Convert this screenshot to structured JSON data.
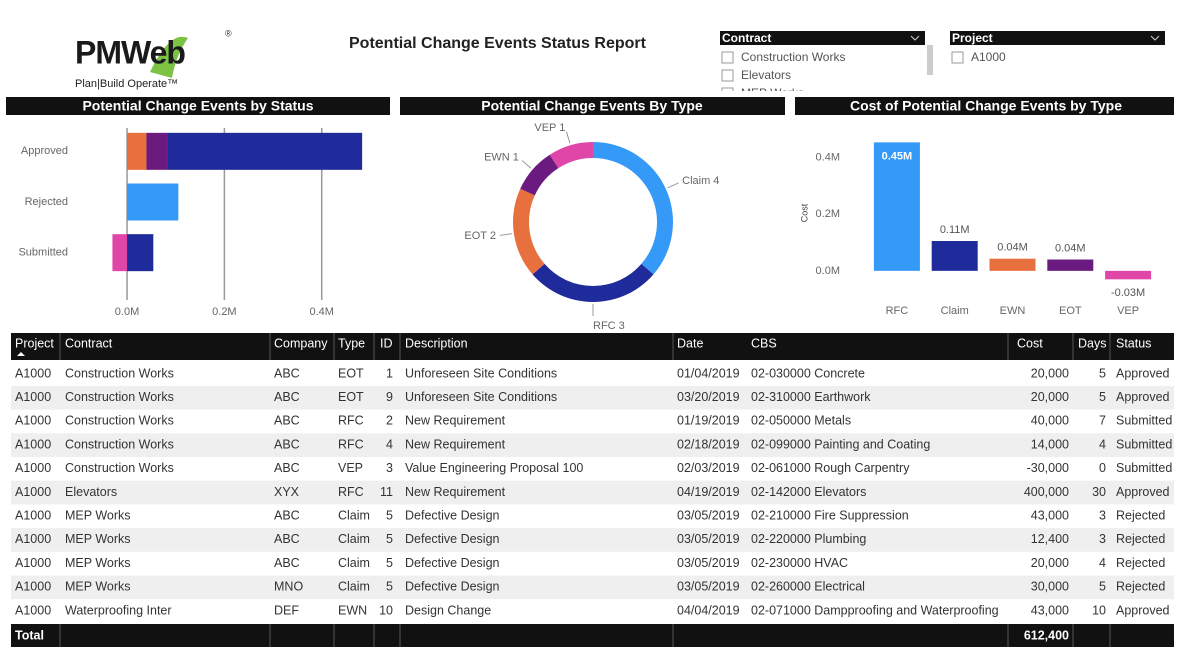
{
  "logo": {
    "brand": "PMWeb",
    "tagline": "Plan|Build Operate™"
  },
  "title": "Potential Change Events Status Report",
  "slicers": [
    {
      "title": "Contract",
      "items": [
        "Construction Works",
        "Elevators",
        "MEP Works"
      ]
    },
    {
      "title": "Project",
      "items": [
        "A1000"
      ]
    }
  ],
  "chart_data": [
    {
      "type": "bar",
      "orientation": "horizontal",
      "stacked": true,
      "title": "Potential Change Events by Status",
      "categories": [
        "Approved",
        "Rejected",
        "Submitted"
      ],
      "series": [
        {
          "color": "#E8703F",
          "values": [
            40000,
            null,
            null
          ]
        },
        {
          "color": "#6B1A7F",
          "values": [
            43000,
            null,
            null
          ]
        },
        {
          "color": "#1F2A9B",
          "values": [
            400000,
            null,
            54000
          ]
        },
        {
          "color": "#3599F7",
          "values": [
            null,
            105400,
            null
          ]
        },
        {
          "color": "#E046A8",
          "values": [
            null,
            null,
            -30000
          ]
        }
      ],
      "xlim": [
        -35000,
        530000
      ],
      "xticks": [
        {
          "value": 0,
          "label": "0.0M"
        },
        {
          "value": 200000,
          "label": "0.2M"
        },
        {
          "value": 400000,
          "label": "0.4M"
        }
      ],
      "grid": true
    },
    {
      "type": "pie",
      "donut": true,
      "title": "Potential Change Events By Type",
      "categories": [
        "Claim",
        "RFC",
        "EOT",
        "EWN",
        "VEP"
      ],
      "values": [
        4,
        3,
        2,
        1,
        1
      ],
      "value_labels": [
        "Claim 4",
        "RFC 3",
        "EOT 2",
        "EWN 1",
        "VEP 1"
      ],
      "colors": [
        "#3599F7",
        "#1F2A9B",
        "#E8703F",
        "#6B1A7F",
        "#E046A8"
      ]
    },
    {
      "type": "bar",
      "title": "Cost of Potential Change Events by Type",
      "categories": [
        "RFC",
        "Claim",
        "EWN",
        "EOT",
        "VEP"
      ],
      "values": [
        454000,
        105400,
        43000,
        40000,
        -30000
      ],
      "value_labels": [
        "0.45M",
        "0.11M",
        "0.04M",
        "0.04M",
        "-0.03M"
      ],
      "colors": [
        "#3599F7",
        "#1F2A9B",
        "#E8703F",
        "#6B1A7F",
        "#E046A8"
      ],
      "ylabel": "Cost",
      "ylim": [
        -50000,
        480000
      ],
      "yticks": [
        {
          "value": 0,
          "label": "0.0M"
        },
        {
          "value": 200000,
          "label": "0.2M"
        },
        {
          "value": 400000,
          "label": "0.4M"
        }
      ]
    }
  ],
  "table": {
    "columns": [
      "Project",
      "Contract",
      "Company",
      "Type",
      "ID",
      "Description",
      "Date",
      "CBS",
      "Cost",
      "Days",
      "Status"
    ],
    "rows": [
      [
        "A1000",
        "Construction Works",
        "ABC",
        "EOT",
        "1",
        "Unforeseen Site Conditions",
        "01/04/2019",
        "02-030000 Concrete",
        "20,000",
        "5",
        "Approved"
      ],
      [
        "A1000",
        "Construction Works",
        "ABC",
        "EOT",
        "9",
        "Unforeseen Site Conditions",
        "03/20/2019",
        "02-310000 Earthwork",
        "20,000",
        "5",
        "Approved"
      ],
      [
        "A1000",
        "Construction Works",
        "ABC",
        "RFC",
        "2",
        "New Requirement",
        "01/19/2019",
        "02-050000 Metals",
        "40,000",
        "7",
        "Submitted"
      ],
      [
        "A1000",
        "Construction Works",
        "ABC",
        "RFC",
        "4",
        "New Requirement",
        "02/18/2019",
        "02-099000 Painting and Coating",
        "14,000",
        "4",
        "Submitted"
      ],
      [
        "A1000",
        "Construction Works",
        "ABC",
        "VEP",
        "3",
        "Value Engineering Proposal 100",
        "02/03/2019",
        "02-061000 Rough Carpentry",
        "-30,000",
        "0",
        "Submitted"
      ],
      [
        "A1000",
        "Elevators",
        "XYX",
        "RFC",
        "11",
        "New Requirement",
        "04/19/2019",
        "02-142000 Elevators",
        "400,000",
        "30",
        "Approved"
      ],
      [
        "A1000",
        "MEP Works",
        "ABC",
        "Claim",
        "5",
        "Defective Design",
        "03/05/2019",
        "02-210000 Fire Suppression",
        "43,000",
        "3",
        "Rejected"
      ],
      [
        "A1000",
        "MEP Works",
        "ABC",
        "Claim",
        "5",
        "Defective Design",
        "03/05/2019",
        "02-220000 Plumbing",
        "12,400",
        "3",
        "Rejected"
      ],
      [
        "A1000",
        "MEP Works",
        "ABC",
        "Claim",
        "5",
        "Defective Design",
        "03/05/2019",
        "02-230000 HVAC",
        "20,000",
        "4",
        "Rejected"
      ],
      [
        "A1000",
        "MEP Works",
        "MNO",
        "Claim",
        "5",
        "Defective Design",
        "03/05/2019",
        "02-260000 Electrical",
        "30,000",
        "5",
        "Rejected"
      ],
      [
        "A1000",
        "Waterproofing Inter",
        "DEF",
        "EWN",
        "10",
        "Design Change",
        "04/04/2019",
        "02-071000 Dampproofing and Waterproofing",
        "43,000",
        "10",
        "Approved"
      ]
    ],
    "total": {
      "label": "Total",
      "cost": "612,400"
    }
  }
}
